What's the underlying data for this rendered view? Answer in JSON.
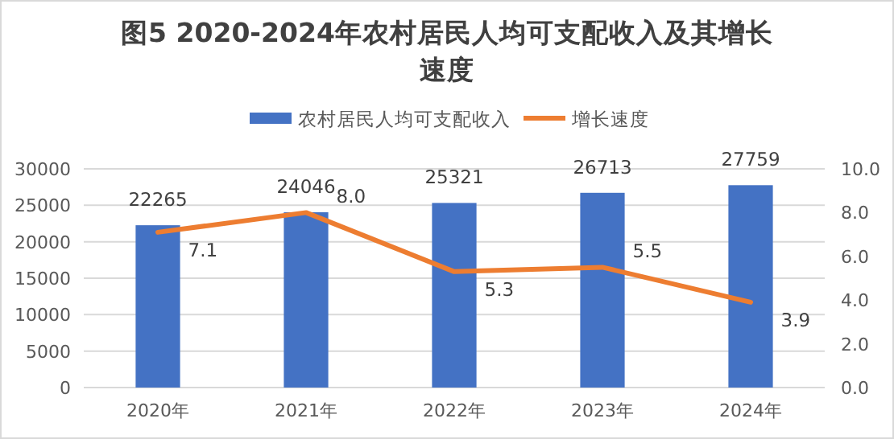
{
  "chart_data": {
    "type": "bar",
    "title": "图5   2020-2024年农村居民人均可支配收入及其增长速度",
    "categories": [
      "2020年",
      "2021年",
      "2022年",
      "2023年",
      "2024年"
    ],
    "series": [
      {
        "name": "农村居民人均可支配收入",
        "color": "#4472c4",
        "values": [
          22265,
          24046,
          25321,
          26713,
          27759
        ]
      },
      {
        "name": "增长速度",
        "type": "line",
        "axis": "y2",
        "color": "#ed7d31",
        "values": [
          7.1,
          8.0,
          5.3,
          5.5,
          3.9
        ],
        "value_labels": [
          "7.1",
          "8.0",
          "5.3",
          "5.5",
          "3.9"
        ]
      }
    ],
    "ylim": [
      0,
      30000
    ],
    "yticks": [
      0,
      5000,
      10000,
      15000,
      20000,
      25000,
      30000
    ],
    "y2lim": [
      0,
      10
    ],
    "y2ticks": [
      {
        "value": 0,
        "label": "0.0"
      },
      {
        "value": 2,
        "label": "2.0"
      },
      {
        "value": 4,
        "label": "4.0"
      },
      {
        "value": 6,
        "label": "6.0"
      },
      {
        "value": 8,
        "label": "8.0"
      },
      {
        "value": 10,
        "label": "10.0"
      }
    ],
    "grid": "y",
    "legend": "top",
    "data_labels": true,
    "marker": "none"
  }
}
